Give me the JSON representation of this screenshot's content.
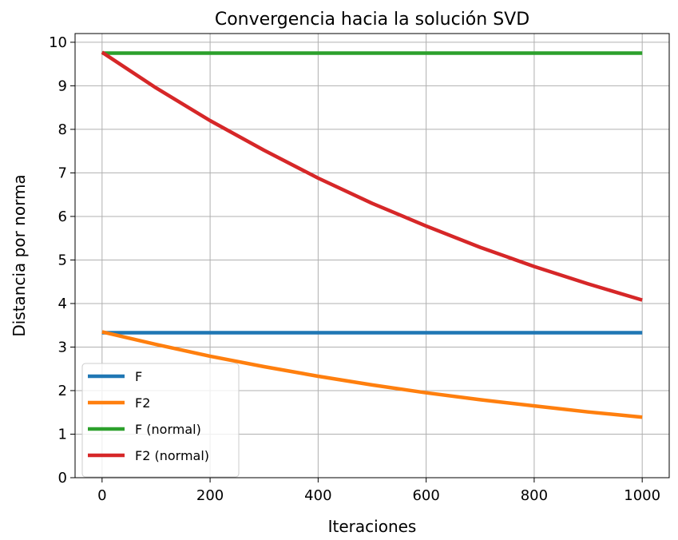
{
  "chart_data": {
    "type": "line",
    "title": "Convergencia hacia la solución SVD",
    "xlabel": "Iteraciones",
    "ylabel": "Distancia por norma",
    "xlim": [
      -50,
      1050
    ],
    "ylim": [
      0,
      10.2
    ],
    "x_ticks": [
      0,
      200,
      400,
      600,
      800,
      1000
    ],
    "y_ticks": [
      0,
      1,
      2,
      3,
      4,
      5,
      6,
      7,
      8,
      9,
      10
    ],
    "grid": true,
    "legend_position": "lower-left",
    "series": [
      {
        "name": "F",
        "color": "#1f77b4",
        "x": [
          0,
          200,
          400,
          600,
          800,
          1000
        ],
        "y": [
          3.33,
          3.33,
          3.33,
          3.33,
          3.33,
          3.33
        ]
      },
      {
        "name": "F2",
        "color": "#ff7f0e",
        "x": [
          0,
          100,
          200,
          300,
          400,
          500,
          600,
          700,
          800,
          900,
          1000
        ],
        "y": [
          3.35,
          3.06,
          2.79,
          2.55,
          2.33,
          2.13,
          1.95,
          1.79,
          1.65,
          1.51,
          1.39
        ]
      },
      {
        "name": "F (normal)",
        "color": "#2ca02c",
        "x": [
          0,
          200,
          400,
          600,
          800,
          1000
        ],
        "y": [
          9.75,
          9.75,
          9.75,
          9.75,
          9.75,
          9.75
        ]
      },
      {
        "name": "F2 (normal)",
        "color": "#d62728",
        "x": [
          0,
          100,
          200,
          300,
          400,
          500,
          600,
          700,
          800,
          900,
          1000
        ],
        "y": [
          9.77,
          8.95,
          8.2,
          7.52,
          6.88,
          6.3,
          5.78,
          5.29,
          4.85,
          4.45,
          4.08
        ]
      }
    ]
  }
}
